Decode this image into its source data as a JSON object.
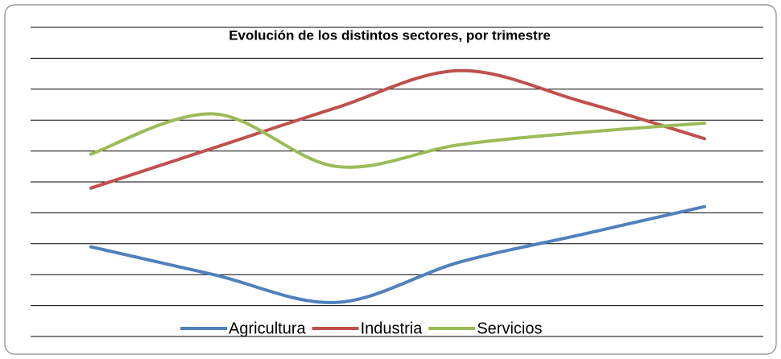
{
  "chart_data": {
    "type": "line",
    "title": "Evolución de los distintos sectores, por trimestre",
    "categories": [
      null,
      null,
      null,
      null,
      null,
      null
    ],
    "series": [
      {
        "name": "Agricultura",
        "color": "#4f81bd",
        "values": [
          2.9,
          2.0,
          1.1,
          2.4,
          3.3,
          4.2
        ]
      },
      {
        "name": "Industria",
        "color": "#c0504d",
        "values": [
          4.8,
          6.1,
          7.4,
          8.6,
          7.6,
          6.4
        ]
      },
      {
        "name": "Servicios",
        "color": "#9bbb59",
        "values": [
          5.9,
          7.2,
          5.5,
          6.2,
          6.6,
          6.9
        ]
      }
    ],
    "ylim": [
      0,
      10
    ],
    "yticks": [
      0,
      1,
      2,
      3,
      4,
      5,
      6,
      7,
      8,
      9,
      10
    ],
    "grid": true,
    "smooth": true,
    "legend": "bottom"
  }
}
